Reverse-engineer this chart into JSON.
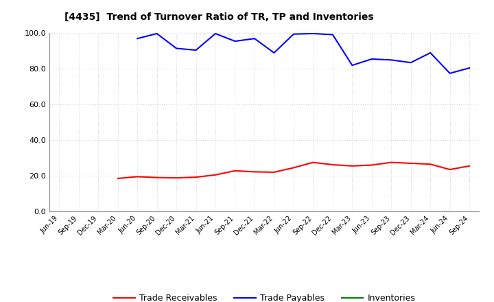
{
  "title": "[4435]  Trend of Turnover Ratio of TR, TP and Inventories",
  "ylim": [
    0,
    100
  ],
  "yticks": [
    0.0,
    20.0,
    40.0,
    60.0,
    80.0,
    100.0
  ],
  "x_labels": [
    "Jun-19",
    "Sep-19",
    "Dec-19",
    "Mar-20",
    "Jun-20",
    "Sep-20",
    "Dec-20",
    "Mar-21",
    "Jun-21",
    "Sep-21",
    "Dec-21",
    "Mar-22",
    "Jun-22",
    "Sep-22",
    "Dec-22",
    "Mar-23",
    "Jun-23",
    "Sep-23",
    "Dec-23",
    "Mar-24",
    "Jun-24",
    "Sep-24"
  ],
  "trade_receivables": [
    null,
    null,
    null,
    18.5,
    19.5,
    19.0,
    18.8,
    19.2,
    20.5,
    22.8,
    22.2,
    22.0,
    24.5,
    27.5,
    26.2,
    25.5,
    26.0,
    27.5,
    27.0,
    26.5,
    23.5,
    25.5
  ],
  "trade_payables": [
    null,
    null,
    null,
    null,
    97.0,
    99.8,
    91.5,
    90.5,
    99.8,
    95.5,
    97.0,
    89.0,
    99.5,
    99.8,
    99.2,
    82.0,
    85.5,
    85.0,
    83.5,
    89.0,
    77.5,
    80.5
  ],
  "inventories": [
    null,
    null,
    null,
    null,
    null,
    null,
    null,
    null,
    null,
    null,
    null,
    null,
    null,
    null,
    null,
    null,
    null,
    null,
    null,
    null,
    null,
    null
  ],
  "line_color_tr": "#FF0000",
  "line_color_tp": "#0000FF",
  "line_color_inv": "#008000",
  "bg_color": "#FFFFFF",
  "grid_color": "#BBBBBB",
  "legend_labels": [
    "Trade Receivables",
    "Trade Payables",
    "Inventories"
  ]
}
